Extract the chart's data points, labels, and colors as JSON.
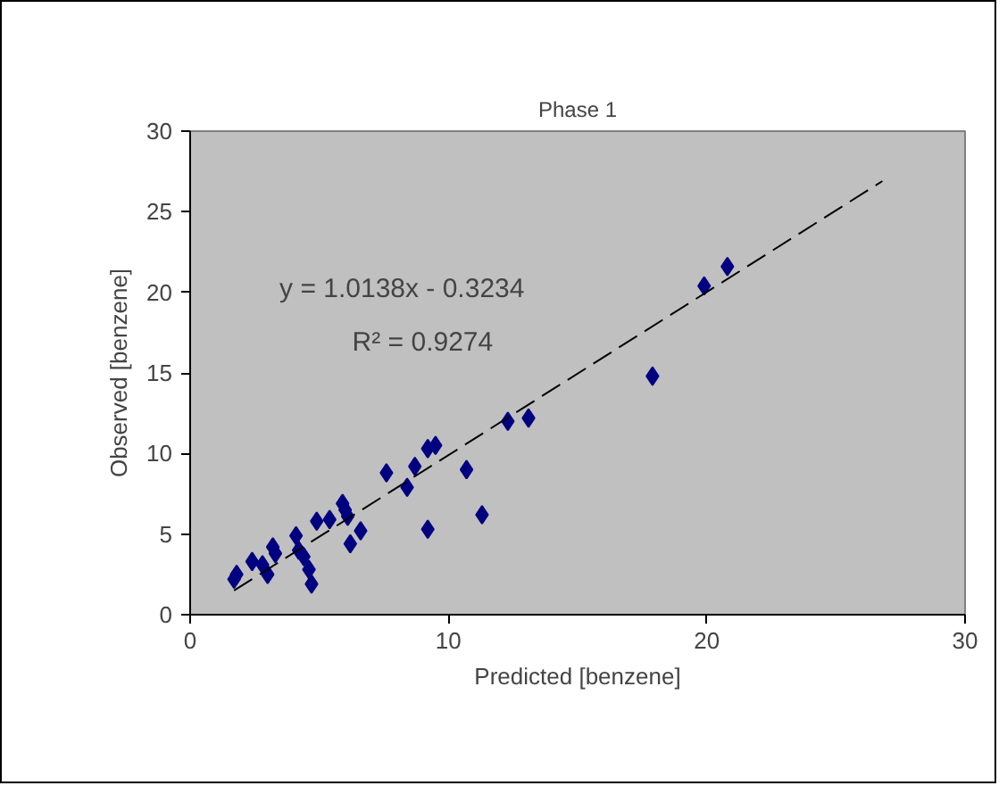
{
  "chart_data": {
    "type": "scatter",
    "title": "Phase 1",
    "xlabel": "Predicted [benzene]",
    "ylabel": "Observed [benzene]",
    "annotations": [
      "y = 1.0138x - 0.3234",
      "R² = 0.9274"
    ],
    "xlim": [
      0,
      30
    ],
    "ylim": [
      0,
      30
    ],
    "xticks": [
      0,
      10,
      20,
      30
    ],
    "yticks": [
      0,
      5,
      10,
      15,
      20,
      25,
      30
    ],
    "grid": false,
    "marker": "diamond",
    "series": [
      {
        "color": "#000080",
        "x": [
          1.7,
          1.8,
          2.4,
          2.8,
          3.0,
          3.2,
          3.3,
          4.1,
          4.2,
          4.4,
          4.6,
          4.7,
          4.9,
          5.4,
          5.9,
          6.0,
          6.1,
          6.2,
          6.6,
          7.6,
          8.4,
          8.7,
          9.2,
          9.5,
          9.2,
          10.7,
          11.3,
          12.3,
          13.1,
          17.9,
          19.9,
          20.8
        ],
        "values": [
          2.2,
          2.5,
          3.3,
          3.1,
          2.5,
          4.2,
          3.8,
          4.9,
          4.0,
          3.6,
          2.8,
          1.9,
          5.8,
          5.9,
          6.9,
          6.5,
          6.1,
          4.4,
          5.2,
          8.8,
          7.9,
          9.2,
          10.3,
          10.5,
          5.3,
          9.0,
          6.2,
          12.0,
          12.2,
          14.8,
          20.4,
          21.6
        ]
      },
      {
        "type": "line",
        "color": "#000000",
        "line_style": "dashed",
        "marker": "none",
        "x": [
          1.7,
          26.8
        ],
        "values": [
          1.5,
          26.9
        ]
      }
    ]
  }
}
